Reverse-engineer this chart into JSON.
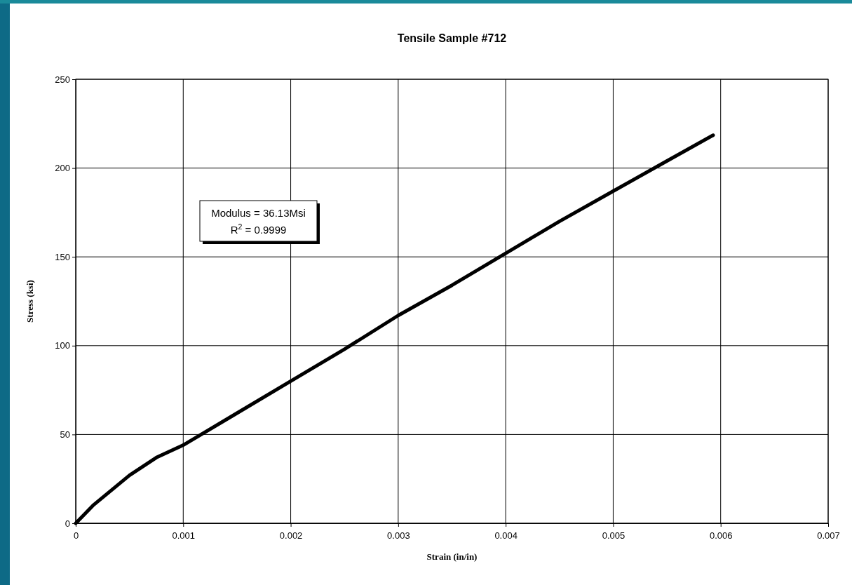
{
  "chart_data": {
    "type": "line",
    "title": "Tensile Sample #712",
    "xlabel": "Strain (in/in)",
    "ylabel": "Stress (ksi)",
    "annotations": [
      "Modulus = 36.13Msi",
      "R$^{2}$ = 0.9999"
    ],
    "x": [
      0,
      0.00016,
      0.0005,
      0.00075,
      0.001,
      0.0015,
      0.002,
      0.0025,
      0.003,
      0.0035,
      0.004,
      0.0045,
      0.005,
      0.0055,
      0.00593
    ],
    "series": [
      {
        "color": "#000000",
        "values": [
          0,
          10,
          27,
          37,
          44,
          62,
          80,
          98,
          117,
          134,
          152,
          170,
          187,
          204,
          218.5
        ]
      }
    ],
    "xlim": [
      0,
      0.007
    ],
    "xticks": [
      0,
      0.001,
      0.002,
      0.003,
      0.004,
      0.005,
      0.006,
      0.007
    ],
    "ylim": [
      0,
      250
    ],
    "yticks": [
      0,
      50,
      100,
      150,
      200,
      250
    ],
    "grid": true,
    "marker": "none",
    "line_style": "solid"
  }
}
